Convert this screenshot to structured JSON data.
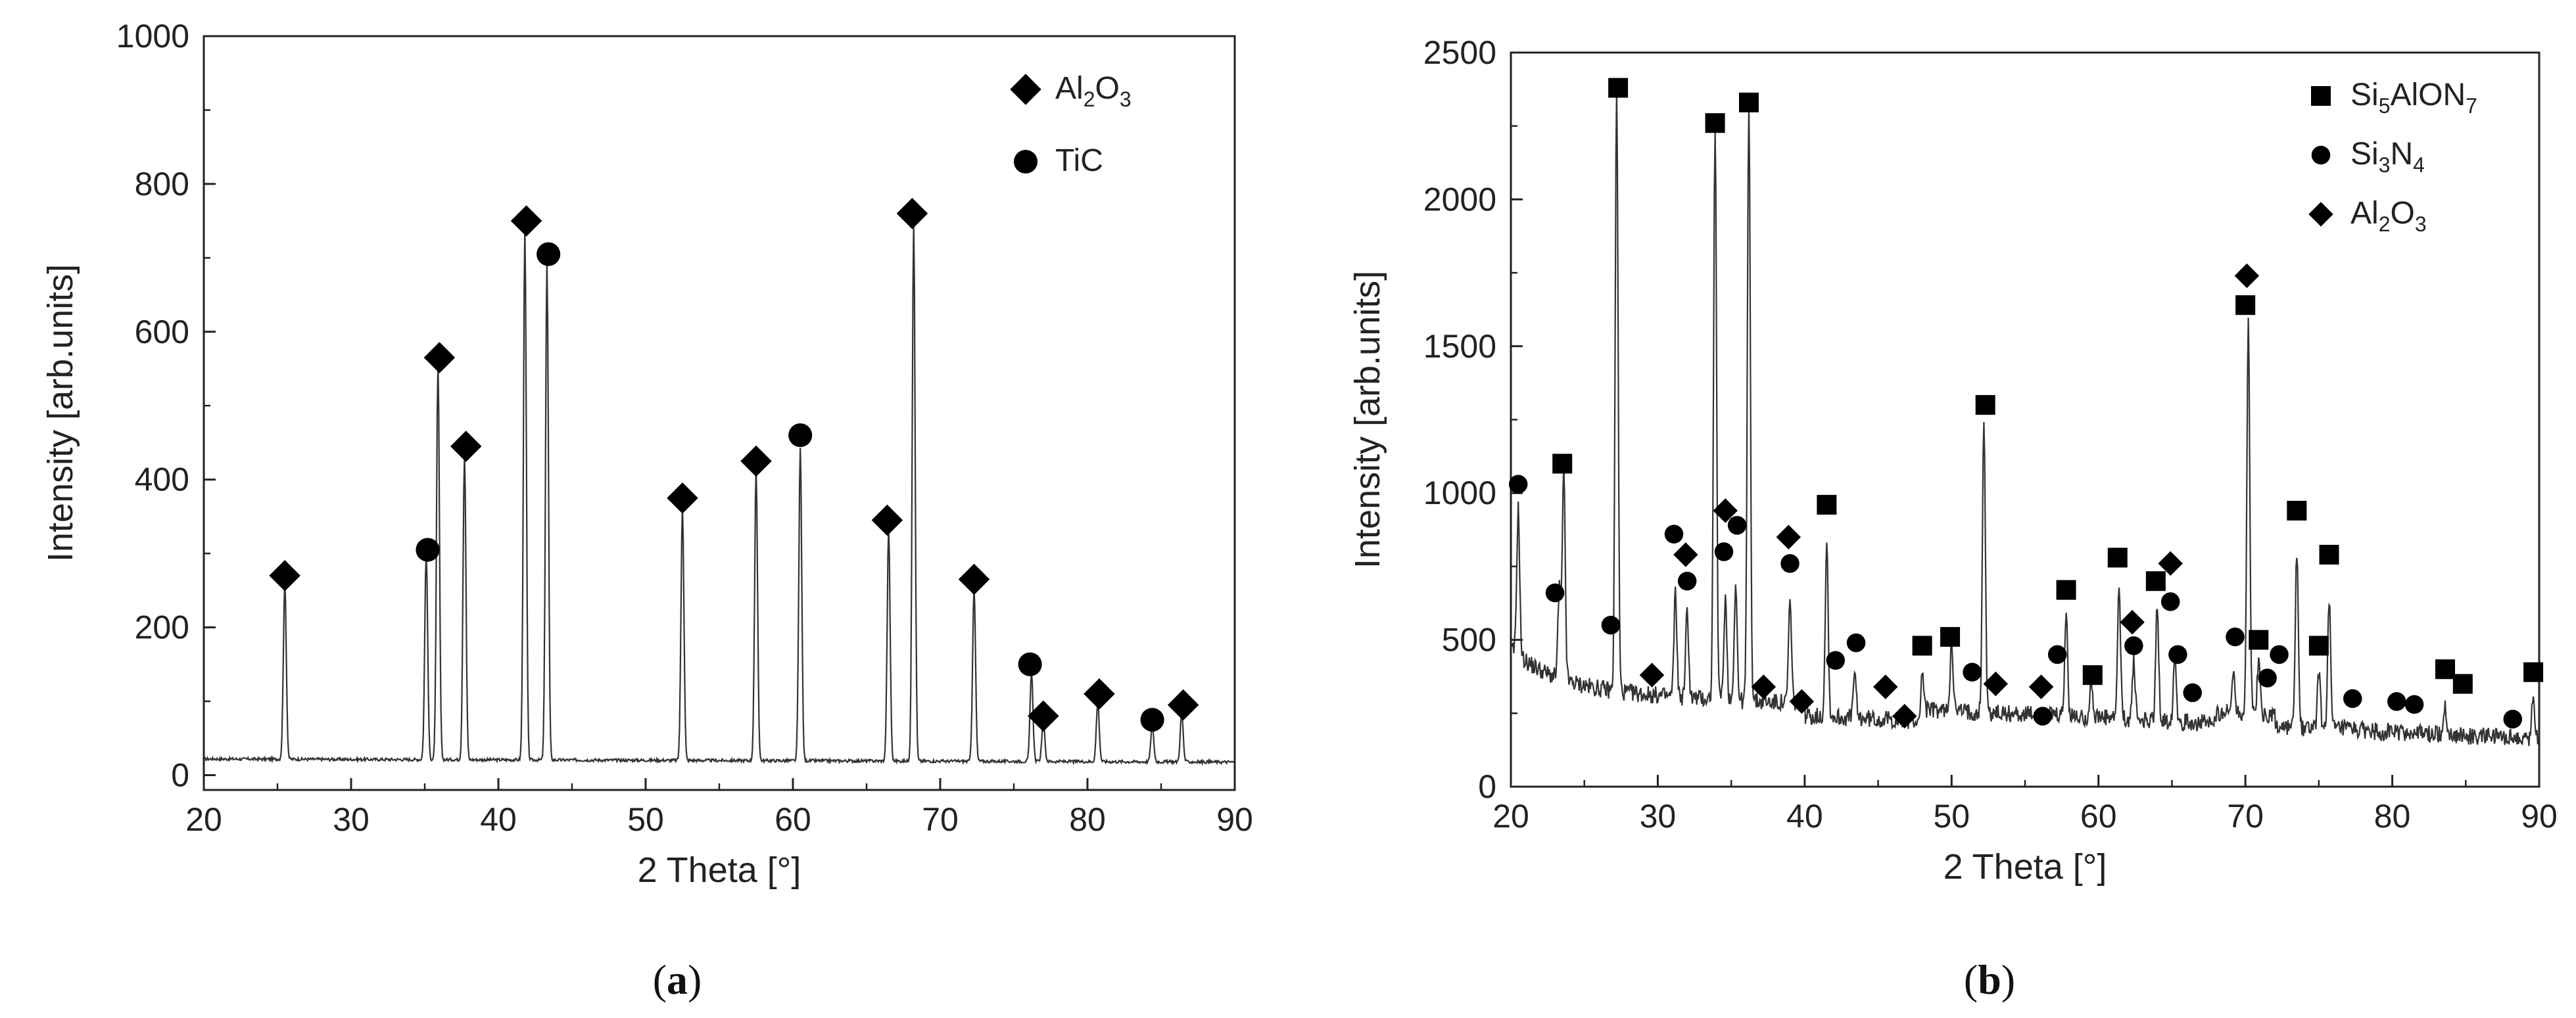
{
  "chart_data": [
    {
      "type": "line",
      "panel": "a",
      "xlabel": "2 Theta [°]",
      "ylabel": "Intensity [arb.units]",
      "xlim": [
        20,
        90
      ],
      "ylim": [
        -20,
        1000
      ],
      "xticks": [
        20,
        30,
        40,
        50,
        60,
        70,
        80,
        90
      ],
      "yticks": [
        0,
        200,
        400,
        600,
        800,
        1000
      ],
      "baseline": 20,
      "peaks": [
        {
          "x": 25.5,
          "y": 240,
          "w": 0.14
        },
        {
          "x": 35.1,
          "y": 280,
          "w": 0.14
        },
        {
          "x": 35.9,
          "y": 535,
          "w": 0.14
        },
        {
          "x": 37.7,
          "y": 415,
          "w": 0.14
        },
        {
          "x": 41.8,
          "y": 720,
          "w": 0.14
        },
        {
          "x": 43.3,
          "y": 675,
          "w": 0.14
        },
        {
          "x": 52.5,
          "y": 345,
          "w": 0.14
        },
        {
          "x": 57.5,
          "y": 395,
          "w": 0.14
        },
        {
          "x": 60.5,
          "y": 425,
          "w": 0.14
        },
        {
          "x": 66.5,
          "y": 315,
          "w": 0.14
        },
        {
          "x": 68.2,
          "y": 730,
          "w": 0.14
        },
        {
          "x": 72.3,
          "y": 235,
          "w": 0.14
        },
        {
          "x": 76.2,
          "y": 120,
          "w": 0.14
        },
        {
          "x": 77.0,
          "y": 55,
          "w": 0.14
        },
        {
          "x": 80.7,
          "y": 80,
          "w": 0.14
        },
        {
          "x": 84.4,
          "y": 50,
          "w": 0.14
        },
        {
          "x": 86.4,
          "y": 65,
          "w": 0.14
        }
      ],
      "markers": [
        {
          "x": 25.5,
          "y": 270,
          "phase": "Al2O3"
        },
        {
          "x": 35.2,
          "y": 305,
          "phase": "TiC"
        },
        {
          "x": 36.0,
          "y": 565,
          "phase": "Al2O3"
        },
        {
          "x": 37.8,
          "y": 445,
          "phase": "Al2O3"
        },
        {
          "x": 41.9,
          "y": 750,
          "phase": "Al2O3"
        },
        {
          "x": 43.4,
          "y": 705,
          "phase": "TiC"
        },
        {
          "x": 52.5,
          "y": 375,
          "phase": "Al2O3"
        },
        {
          "x": 57.5,
          "y": 425,
          "phase": "Al2O3"
        },
        {
          "x": 60.5,
          "y": 460,
          "phase": "TiC"
        },
        {
          "x": 66.4,
          "y": 345,
          "phase": "Al2O3"
        },
        {
          "x": 68.1,
          "y": 760,
          "phase": "Al2O3"
        },
        {
          "x": 72.3,
          "y": 265,
          "phase": "Al2O3"
        },
        {
          "x": 76.1,
          "y": 150,
          "phase": "TiC"
        },
        {
          "x": 77.0,
          "y": 80,
          "phase": "Al2O3"
        },
        {
          "x": 80.8,
          "y": 110,
          "phase": "Al2O3"
        },
        {
          "x": 84.4,
          "y": 75,
          "phase": "TiC"
        },
        {
          "x": 86.5,
          "y": 95,
          "phase": "Al2O3"
        }
      ],
      "legend": [
        {
          "symbol": "diamond",
          "label_main": "Al",
          "sub1": "2",
          "mid": "O",
          "sub2": "3"
        },
        {
          "symbol": "circle",
          "label_main": "TiC"
        }
      ],
      "legend_position": "top-right",
      "panel_label": {
        "open": "(",
        "letter": "a",
        "close": ")"
      }
    },
    {
      "type": "line",
      "panel": "b",
      "xlabel": "2 Theta [°]",
      "ylabel": "Intensity [arb.units]",
      "xlim": [
        20,
        90
      ],
      "ylim": [
        0,
        2500
      ],
      "xticks": [
        20,
        30,
        40,
        50,
        60,
        70,
        80,
        90
      ],
      "yticks": [
        0,
        500,
        1000,
        1500,
        2000,
        2500
      ],
      "peaks": [
        {
          "x": 20.5,
          "y": 500,
          "w": 0.14
        },
        {
          "x": 23.3,
          "y": 300,
          "w": 0.14
        },
        {
          "x": 23.6,
          "y": 700,
          "w": 0.14
        },
        {
          "x": 27.2,
          "y": 2050,
          "w": 0.14
        },
        {
          "x": 31.2,
          "y": 350,
          "w": 0.14
        },
        {
          "x": 32.0,
          "y": 300,
          "w": 0.14
        },
        {
          "x": 33.9,
          "y": 1950,
          "w": 0.14
        },
        {
          "x": 34.6,
          "y": 350,
          "w": 0.14
        },
        {
          "x": 35.3,
          "y": 400,
          "w": 0.14
        },
        {
          "x": 36.2,
          "y": 2050,
          "w": 0.14
        },
        {
          "x": 39.0,
          "y": 350,
          "w": 0.14
        },
        {
          "x": 41.5,
          "y": 600,
          "w": 0.14
        },
        {
          "x": 43.4,
          "y": 150,
          "w": 0.14
        },
        {
          "x": 48.0,
          "y": 150,
          "w": 0.14
        },
        {
          "x": 50.0,
          "y": 250,
          "w": 0.14
        },
        {
          "x": 52.2,
          "y": 1000,
          "w": 0.14
        },
        {
          "x": 57.8,
          "y": 350,
          "w": 0.14
        },
        {
          "x": 59.5,
          "y": 130,
          "w": 0.14
        },
        {
          "x": 61.4,
          "y": 450,
          "w": 0.14
        },
        {
          "x": 62.4,
          "y": 200,
          "w": 0.14
        },
        {
          "x": 64.0,
          "y": 400,
          "w": 0.14
        },
        {
          "x": 65.2,
          "y": 250,
          "w": 0.14
        },
        {
          "x": 69.2,
          "y": 150,
          "w": 0.14
        },
        {
          "x": 70.2,
          "y": 1350,
          "w": 0.14
        },
        {
          "x": 70.9,
          "y": 180,
          "w": 0.14
        },
        {
          "x": 73.5,
          "y": 600,
          "w": 0.14
        },
        {
          "x": 75.0,
          "y": 200,
          "w": 0.14
        },
        {
          "x": 75.7,
          "y": 450,
          "w": 0.14
        },
        {
          "x": 83.6,
          "y": 100,
          "w": 0.14
        },
        {
          "x": 89.6,
          "y": 150,
          "w": 0.14
        }
      ],
      "markers": [
        {
          "x": 20.5,
          "y": 1030,
          "phase": "Si3N4"
        },
        {
          "x": 23.0,
          "y": 660,
          "phase": "Si3N4"
        },
        {
          "x": 23.5,
          "y": 1100,
          "phase": "Si5AlON7"
        },
        {
          "x": 26.8,
          "y": 550,
          "phase": "Si3N4"
        },
        {
          "x": 27.3,
          "y": 2380,
          "phase": "Si5AlON7"
        },
        {
          "x": 29.6,
          "y": 380,
          "phase": "Al2O3"
        },
        {
          "x": 31.1,
          "y": 860,
          "phase": "Si3N4"
        },
        {
          "x": 31.9,
          "y": 790,
          "phase": "Al2O3"
        },
        {
          "x": 32.0,
          "y": 700,
          "phase": "Si3N4"
        },
        {
          "x": 33.9,
          "y": 2260,
          "phase": "Si5AlON7"
        },
        {
          "x": 34.5,
          "y": 800,
          "phase": "Si3N4"
        },
        {
          "x": 34.6,
          "y": 940,
          "phase": "Al2O3"
        },
        {
          "x": 35.4,
          "y": 890,
          "phase": "Si3N4"
        },
        {
          "x": 36.2,
          "y": 2330,
          "phase": "Si5AlON7"
        },
        {
          "x": 37.2,
          "y": 340,
          "phase": "Al2O3"
        },
        {
          "x": 38.9,
          "y": 850,
          "phase": "Al2O3"
        },
        {
          "x": 39.0,
          "y": 760,
          "phase": "Si3N4"
        },
        {
          "x": 39.8,
          "y": 290,
          "phase": "Al2O3"
        },
        {
          "x": 41.5,
          "y": 960,
          "phase": "Si5AlON7"
        },
        {
          "x": 42.1,
          "y": 430,
          "phase": "Si3N4"
        },
        {
          "x": 43.5,
          "y": 490,
          "phase": "Si3N4"
        },
        {
          "x": 45.5,
          "y": 340,
          "phase": "Al2O3"
        },
        {
          "x": 46.8,
          "y": 240,
          "phase": "Al2O3"
        },
        {
          "x": 48.0,
          "y": 480,
          "phase": "Si5AlON7"
        },
        {
          "x": 49.9,
          "y": 510,
          "phase": "Si5AlON7"
        },
        {
          "x": 51.4,
          "y": 390,
          "phase": "Si3N4"
        },
        {
          "x": 52.3,
          "y": 1300,
          "phase": "Si5AlON7"
        },
        {
          "x": 53.0,
          "y": 350,
          "phase": "Al2O3"
        },
        {
          "x": 56.1,
          "y": 340,
          "phase": "Al2O3"
        },
        {
          "x": 56.2,
          "y": 240,
          "phase": "Si3N4"
        },
        {
          "x": 57.2,
          "y": 450,
          "phase": "Si3N4"
        },
        {
          "x": 57.8,
          "y": 670,
          "phase": "Si5AlON7"
        },
        {
          "x": 59.6,
          "y": 380,
          "phase": "Si5AlON7"
        },
        {
          "x": 61.3,
          "y": 780,
          "phase": "Si5AlON7"
        },
        {
          "x": 62.3,
          "y": 560,
          "phase": "Al2O3"
        },
        {
          "x": 62.4,
          "y": 480,
          "phase": "Si3N4"
        },
        {
          "x": 63.9,
          "y": 700,
          "phase": "Si5AlON7"
        },
        {
          "x": 64.9,
          "y": 760,
          "phase": "Al2O3"
        },
        {
          "x": 64.9,
          "y": 630,
          "phase": "Si3N4"
        },
        {
          "x": 65.4,
          "y": 450,
          "phase": "Si3N4"
        },
        {
          "x": 66.4,
          "y": 320,
          "phase": "Si3N4"
        },
        {
          "x": 69.3,
          "y": 510,
          "phase": "Si3N4"
        },
        {
          "x": 70.1,
          "y": 1740,
          "phase": "Al2O3"
        },
        {
          "x": 70.0,
          "y": 1640,
          "phase": "Si5AlON7"
        },
        {
          "x": 70.9,
          "y": 500,
          "phase": "Si5AlON7"
        },
        {
          "x": 71.5,
          "y": 370,
          "phase": "Si3N4"
        },
        {
          "x": 72.3,
          "y": 450,
          "phase": "Si3N4"
        },
        {
          "x": 73.5,
          "y": 940,
          "phase": "Si5AlON7"
        },
        {
          "x": 75.0,
          "y": 480,
          "phase": "Si5AlON7"
        },
        {
          "x": 75.7,
          "y": 790,
          "phase": "Si5AlON7"
        },
        {
          "x": 77.3,
          "y": 300,
          "phase": "Si3N4"
        },
        {
          "x": 80.3,
          "y": 290,
          "phase": "Si3N4"
        },
        {
          "x": 81.5,
          "y": 280,
          "phase": "Si3N4"
        },
        {
          "x": 83.6,
          "y": 400,
          "phase": "Si5AlON7"
        },
        {
          "x": 84.8,
          "y": 350,
          "phase": "Si5AlON7"
        },
        {
          "x": 88.2,
          "y": 230,
          "phase": "Si3N4"
        },
        {
          "x": 89.6,
          "y": 390,
          "phase": "Si5AlON7"
        }
      ],
      "legend": [
        {
          "symbol": "square",
          "label_main": "Si",
          "sub1": "5",
          "mid": "AlON",
          "sub2": "7"
        },
        {
          "symbol": "circle",
          "label_main": "Si",
          "sub1": "3",
          "mid": "N",
          "sub2": "4"
        },
        {
          "symbol": "diamond",
          "label_main": "Al",
          "sub1": "2",
          "mid": "O",
          "sub2": "3"
        }
      ],
      "legend_position": "top-right",
      "panel_label": {
        "open": "(",
        "letter": "b",
        "close": ")"
      }
    }
  ]
}
